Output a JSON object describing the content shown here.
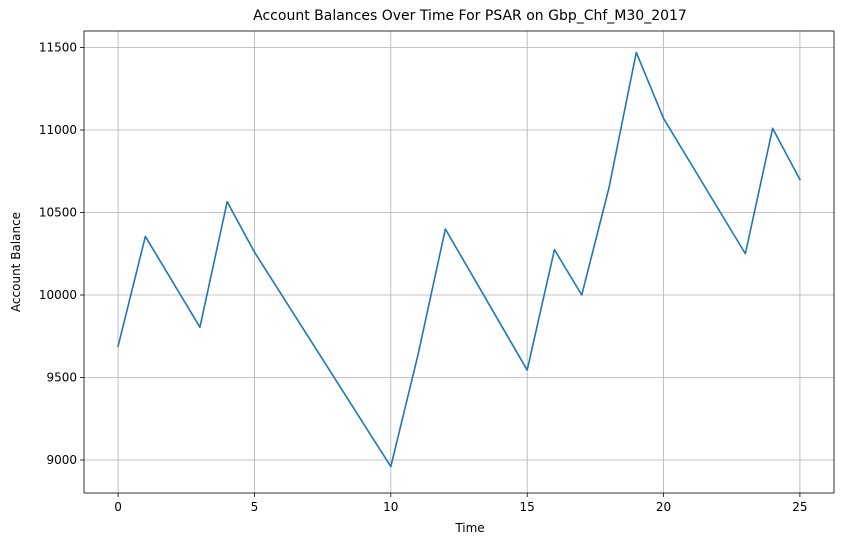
{
  "chart_data": {
    "type": "line",
    "title": "Account Balances Over Time For PSAR on Gbp_Chf_M30_2017",
    "xlabel": "Time",
    "ylabel": "Account Balance",
    "xlim": [
      -1.25,
      26.25
    ],
    "ylim": [
      8800,
      11600
    ],
    "xticks": [
      0,
      5,
      10,
      15,
      20,
      25
    ],
    "yticks": [
      9000,
      9500,
      10000,
      10500,
      11000,
      11500
    ],
    "grid": true,
    "legend": "none",
    "series": [
      {
        "color": "#1f77b4",
        "x": [
          0,
          1,
          3,
          4,
          5,
          10,
          11,
          12,
          14,
          15,
          16,
          17,
          18,
          19,
          20,
          23,
          24,
          25
        ],
        "y": [
          9690,
          10355,
          9805,
          10565,
          10260,
          8960,
          9640,
          10400,
          9830,
          9545,
          10275,
          10000,
          10650,
          11470,
          11070,
          10250,
          11010,
          10700
        ]
      }
    ]
  }
}
